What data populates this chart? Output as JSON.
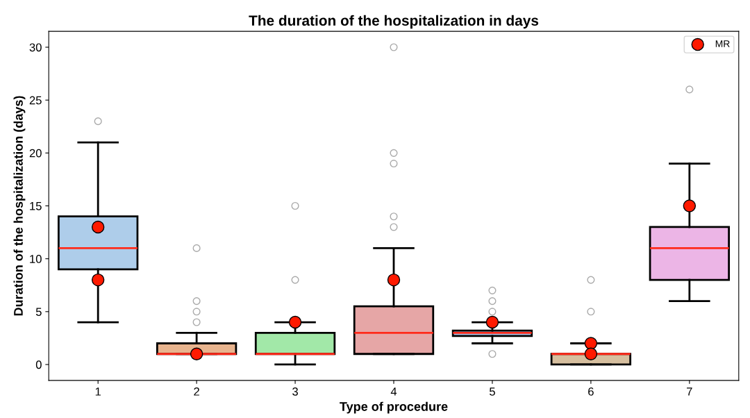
{
  "chart_data": {
    "type": "box",
    "title": "The duration of the hospitalization in days",
    "xlabel": "Type of procedure",
    "ylabel": "Duration of the hospitalization (days)",
    "categories": [
      "1",
      "2",
      "3",
      "4",
      "5",
      "6",
      "7"
    ],
    "colors": [
      "#aecdea",
      "#e8b48e",
      "#a2e8a8",
      "#e6a6a6",
      "#a9c4e8",
      "#d6bf9f",
      "#ecb5e6"
    ],
    "boxes": [
      {
        "low": 4,
        "q1": 9,
        "median": 11,
        "q3": 14,
        "high": 21,
        "outliers": [
          23
        ]
      },
      {
        "low": 1,
        "q1": 1,
        "median": 1,
        "q3": 2,
        "high": 3,
        "outliers": [
          4,
          5,
          6,
          11
        ]
      },
      {
        "low": 0,
        "q1": 1,
        "median": 1,
        "q3": 3,
        "high": 4,
        "outliers": [
          8,
          15
        ]
      },
      {
        "low": 1,
        "q1": 1,
        "median": 3,
        "q3": 5.5,
        "high": 11,
        "outliers": [
          13,
          14,
          19,
          20,
          30
        ]
      },
      {
        "low": 2,
        "q1": 2.7,
        "median": 3,
        "q3": 3.2,
        "high": 4,
        "outliers": [
          1,
          5,
          6,
          7
        ]
      },
      {
        "low": 0,
        "q1": 0,
        "median": 1,
        "q3": 1,
        "high": 2,
        "outliers": [
          5,
          8
        ]
      },
      {
        "low": 6,
        "q1": 8,
        "median": 11,
        "q3": 13,
        "high": 19,
        "outliers": [
          26
        ]
      }
    ],
    "series": [
      {
        "name": "MR",
        "type": "scatter",
        "color": "#ff1a00",
        "marker": "circle",
        "x": [
          "1",
          "1",
          "2",
          "3",
          "4",
          "5",
          "6",
          "6",
          "7"
        ],
        "values": [
          13,
          8,
          1,
          4,
          8,
          4,
          2,
          1,
          15
        ]
      }
    ],
    "ylim": [
      -1.5,
      31.5
    ],
    "yticks": [
      0,
      5,
      10,
      15,
      20,
      25,
      30
    ],
    "legend": "top right",
    "grid": false
  }
}
